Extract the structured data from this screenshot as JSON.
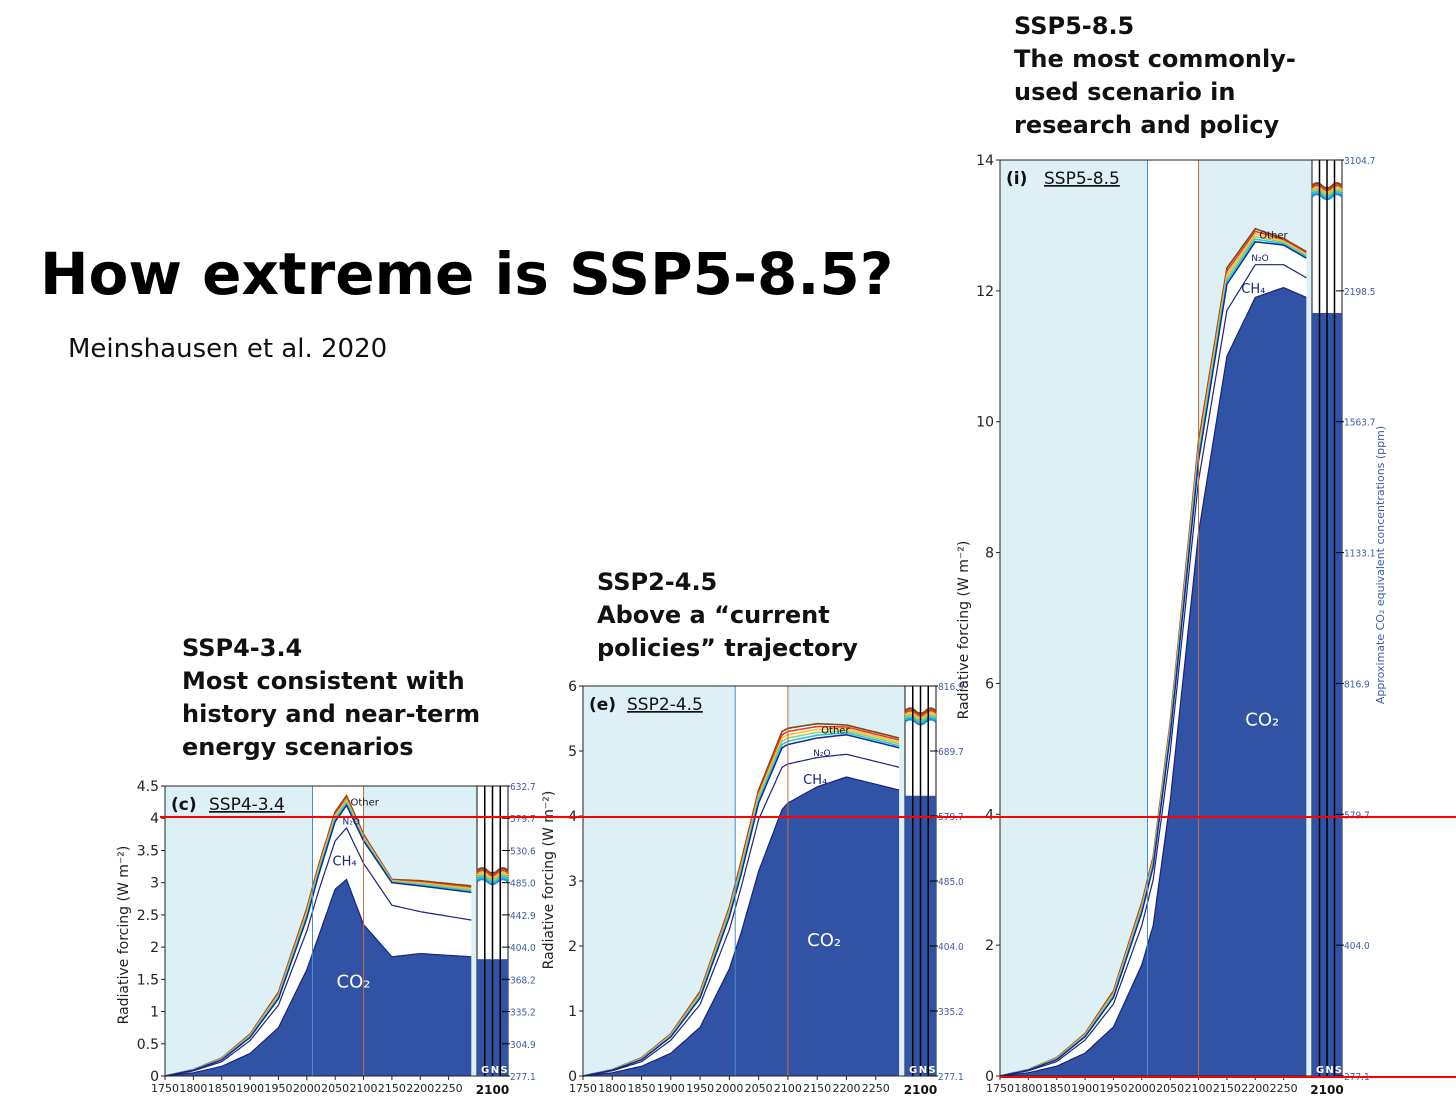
{
  "title": "How extreme is SSP5-8.5?",
  "citation": "Meinshausen et al. 2020",
  "captions": {
    "ssp434": {
      "name": "SSP4-3.4",
      "line1": "Most consistent with",
      "line2": "history and near-term",
      "line3": "energy scenarios"
    },
    "ssp245": {
      "name": "SSP2-4.5",
      "line1": "Above a “current",
      "line2": "policies” trajectory"
    },
    "ssp585": {
      "name": "SSP5-8.5",
      "line1": "The most commonly-",
      "line2": "used scenario in",
      "line3": "research and policy"
    }
  },
  "reference_line_value": 4,
  "colors": {
    "co2": "#3153a5",
    "ch4": "#ffffff",
    "n2o": "#ffffff",
    "other": "#5b9bd5",
    "hist_bg": "#dcf0f6",
    "edge": "#1a237e",
    "outline": "#7a4b12",
    "red": "#ff0000",
    "divider_blue": "#4a8fc4",
    "divider_orange": "#c0703a",
    "conc_label": "#3b5bab"
  },
  "chart_data": [
    {
      "type": "area",
      "panel": "(c)",
      "scenario_label": "SSP4-3.4",
      "ylabel": "Radiative forcing (W m⁻²)",
      "ylim": [
        0,
        4.5
      ],
      "yticks": [
        "0",
        "0.5",
        "1",
        "1.5",
        "2",
        "2.5",
        "3",
        "3.5",
        "4",
        "4.5"
      ],
      "xlim": [
        1750,
        2300
      ],
      "xticks": [
        "1750",
        "1800",
        "1850",
        "1900",
        "1950",
        "2000",
        "2050",
        "2100",
        "2150",
        "2200",
        "2250"
      ],
      "bottom_label": "2100",
      "gns": "GNS",
      "series_labels": {
        "co2": "CO₂",
        "ch4": "CH₄",
        "n2o": "N₂O",
        "other": "Other"
      },
      "conc_ticks": [
        "632.7",
        "579.7",
        "530.6",
        "485.0",
        "442.9",
        "404.0",
        "368.2",
        "335.2",
        "304.9",
        "277.1"
      ],
      "x": [
        1750,
        1800,
        1850,
        1900,
        1950,
        2000,
        2020,
        2050,
        2070,
        2100,
        2150,
        2200,
        2290
      ],
      "series": [
        {
          "name": "CO₂",
          "values": [
            0,
            0.05,
            0.15,
            0.35,
            0.75,
            1.65,
            2.15,
            2.9,
            3.05,
            2.35,
            1.85,
            1.9,
            1.85
          ]
        },
        {
          "name": "CH₄",
          "values": [
            0,
            0.08,
            0.22,
            0.55,
            1.1,
            2.25,
            2.85,
            3.65,
            3.85,
            3.3,
            2.65,
            2.55,
            2.42
          ]
        },
        {
          "name": "N₂O",
          "values": [
            0,
            0.09,
            0.25,
            0.6,
            1.2,
            2.45,
            3.1,
            3.95,
            4.2,
            3.65,
            3.0,
            2.95,
            2.85
          ]
        },
        {
          "name": "Other",
          "values": [
            0,
            0.1,
            0.28,
            0.65,
            1.3,
            2.6,
            3.25,
            4.1,
            4.35,
            3.75,
            3.05,
            3.03,
            2.95
          ]
        }
      ]
    },
    {
      "type": "area",
      "panel": "(e)",
      "scenario_label": "SSP2-4.5",
      "ylabel": "Radiative forcing (W m⁻²)",
      "ylim": [
        0,
        6
      ],
      "yticks": [
        "0",
        "1",
        "2",
        "3",
        "4",
        "5",
        "6"
      ],
      "xlim": [
        1750,
        2300
      ],
      "xticks": [
        "1750",
        "1800",
        "1850",
        "1900",
        "1950",
        "2000",
        "2050",
        "2100",
        "2150",
        "2200",
        "2250"
      ],
      "bottom_label": "2100",
      "gns": "GNS",
      "series_labels": {
        "co2": "CO₂",
        "ch4": "CH₄",
        "n2o": "N₂O",
        "other": "Other"
      },
      "conc_ticks": [
        "816.9",
        "689.7",
        "579.7",
        "485.0",
        "404.0",
        "335.2",
        "277.1"
      ],
      "x": [
        1750,
        1800,
        1850,
        1900,
        1950,
        2000,
        2020,
        2050,
        2090,
        2100,
        2150,
        2200,
        2290
      ],
      "series": [
        {
          "name": "CO₂",
          "values": [
            0,
            0.05,
            0.15,
            0.35,
            0.75,
            1.65,
            2.2,
            3.15,
            4.1,
            4.2,
            4.45,
            4.6,
            4.4
          ]
        },
        {
          "name": "CH₄",
          "values": [
            0,
            0.08,
            0.22,
            0.55,
            1.1,
            2.25,
            2.9,
            3.95,
            4.75,
            4.8,
            4.9,
            4.95,
            4.75
          ]
        },
        {
          "name": "N₂O",
          "values": [
            0,
            0.09,
            0.25,
            0.6,
            1.2,
            2.45,
            3.1,
            4.2,
            5.05,
            5.1,
            5.2,
            5.25,
            5.05
          ]
        },
        {
          "name": "Other",
          "values": [
            0,
            0.1,
            0.28,
            0.65,
            1.3,
            2.6,
            3.3,
            4.4,
            5.3,
            5.35,
            5.42,
            5.4,
            5.2
          ]
        }
      ]
    },
    {
      "type": "area",
      "panel": "(i)",
      "scenario_label": "SSP5-8.5",
      "ylabel": "Radiative forcing (W m⁻²)",
      "ylabel_right": "Approximate CO₂ equivalent concentrations (ppm)",
      "ylim": [
        0,
        14
      ],
      "yticks": [
        "0",
        "2",
        "4",
        "6",
        "8",
        "10",
        "12",
        "14"
      ],
      "xlim": [
        1750,
        2300
      ],
      "xticks": [
        "1750",
        "1800",
        "1850",
        "1900",
        "1950",
        "2000",
        "2050",
        "2100",
        "2150",
        "2200",
        "2250"
      ],
      "bottom_label": "2100",
      "gns": "GNS",
      "series_labels": {
        "co2": "CO₂",
        "ch4": "CH₄",
        "n2o": "N₂O",
        "other": "Other"
      },
      "conc_ticks": [
        "3104.7",
        "2198.5",
        "1563.7",
        "1133.1",
        "816.9",
        "579.7",
        "404.0",
        "277.1"
      ],
      "x": [
        1750,
        1800,
        1850,
        1900,
        1950,
        2000,
        2020,
        2050,
        2100,
        2150,
        2200,
        2250,
        2290
      ],
      "series": [
        {
          "name": "CO₂",
          "values": [
            0,
            0.05,
            0.15,
            0.35,
            0.75,
            1.7,
            2.3,
            4.2,
            8.3,
            11.0,
            11.9,
            12.05,
            11.9
          ]
        },
        {
          "name": "CH₄",
          "values": [
            0,
            0.08,
            0.22,
            0.55,
            1.1,
            2.3,
            3.0,
            4.95,
            9.1,
            11.7,
            12.4,
            12.4,
            12.2
          ]
        },
        {
          "name": "N₂O",
          "values": [
            0,
            0.09,
            0.25,
            0.6,
            1.2,
            2.5,
            3.2,
            5.2,
            9.4,
            12.1,
            12.75,
            12.7,
            12.5
          ]
        },
        {
          "name": "Other",
          "values": [
            0,
            0.1,
            0.28,
            0.65,
            1.3,
            2.65,
            3.35,
            5.4,
            9.7,
            12.35,
            12.95,
            12.8,
            12.6
          ]
        }
      ]
    }
  ]
}
